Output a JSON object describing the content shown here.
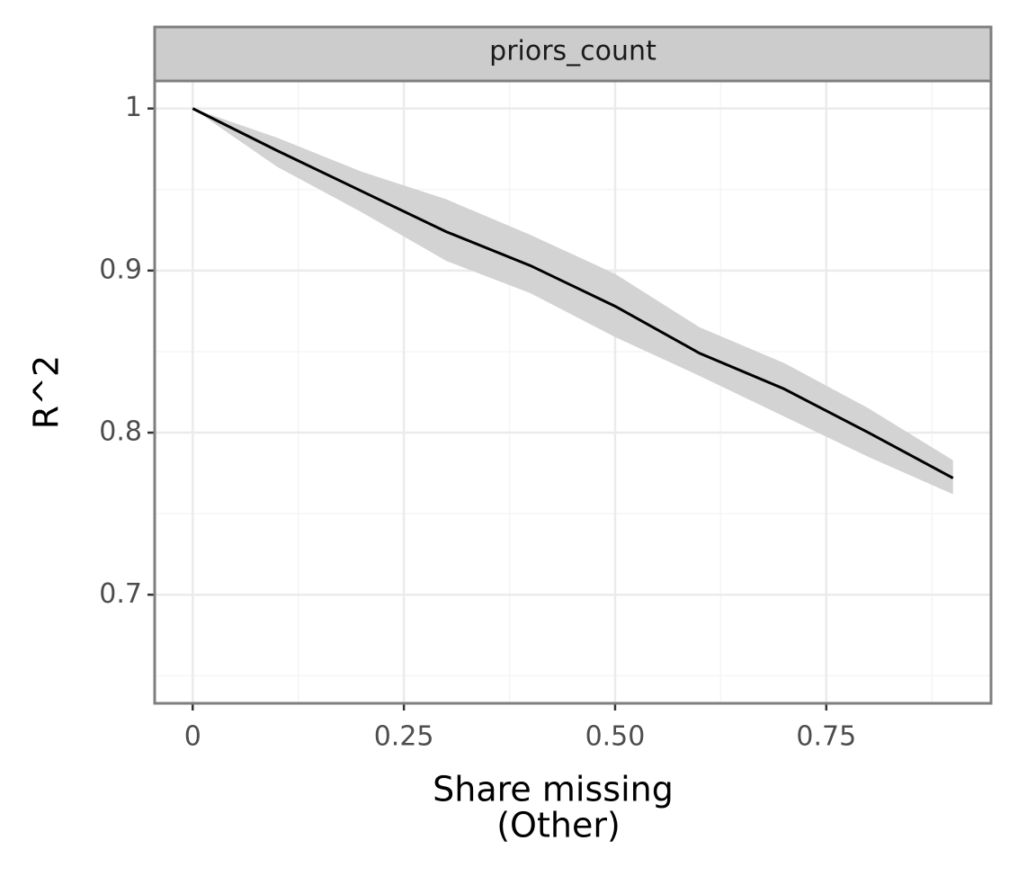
{
  "chart_data": {
    "type": "line",
    "strip": "priors_count",
    "xlabel": [
      "Share missing",
      "(Other)"
    ],
    "ylabel": "R^2",
    "x": [
      0,
      0.1,
      0.2,
      0.3,
      0.4,
      0.5,
      0.6,
      0.7,
      0.8,
      0.9
    ],
    "series": [
      {
        "name": "R^2",
        "color": "#000000",
        "values": [
          1.0,
          0.974,
          0.949,
          0.924,
          0.903,
          0.878,
          0.849,
          0.827,
          0.8,
          0.772
        ],
        "upper": [
          1.0,
          0.982,
          0.961,
          0.944,
          0.922,
          0.898,
          0.865,
          0.843,
          0.815,
          0.783
        ],
        "lower": [
          1.0,
          0.964,
          0.936,
          0.906,
          0.886,
          0.859,
          0.835,
          0.81,
          0.785,
          0.762
        ],
        "band_color": "#d3d3d3"
      }
    ],
    "xlim": [
      -0.045,
      0.945
    ],
    "ylim": [
      0.633,
      1.017
    ],
    "xticks": [
      0,
      0.25,
      {
        "value": 0.5,
        "label": "0.50"
      },
      0.75
    ],
    "yticks": [
      0.7,
      0.8,
      0.9,
      1
    ],
    "xminor": [
      0.125,
      0.375,
      0.625,
      0.875
    ],
    "yminor": [
      0.65,
      0.75,
      0.85,
      0.95
    ],
    "grid": true
  }
}
